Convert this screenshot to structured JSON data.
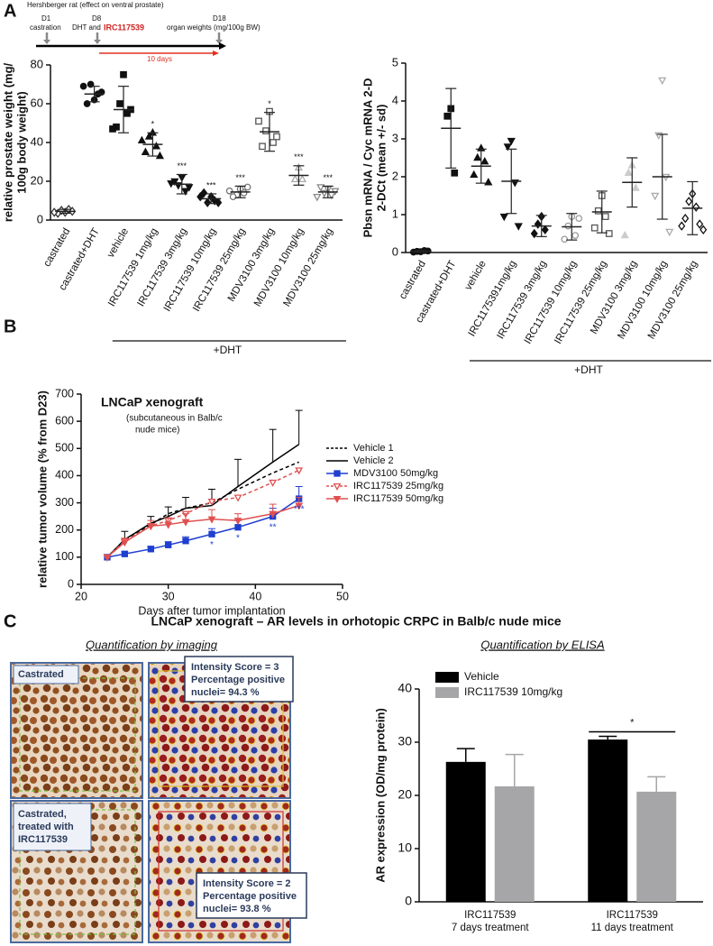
{
  "panels": {
    "a": "A",
    "b": "B",
    "c": "C"
  },
  "timeline": {
    "title": "Hershberger rat (effect on ventral prostate)",
    "d1": "D1",
    "d1_label": "castration",
    "d8": "D8",
    "d8_label": "DHT and",
    "d8_drug": "IRC117539",
    "d18": "D18",
    "d18_label": "organ weights (mg/100g BW)",
    "duration": "10 days"
  },
  "panel_c_title": "LNCaP xenograft – AR levels in orhotopic CRPC in Balb/c nude mice",
  "imaging": {
    "title": "Quantification by imaging",
    "samples": [
      {
        "label": [
          "Castrated"
        ],
        "score": "Intensity Score = 3",
        "positive": [
          "Percentage positive",
          "nuclei= 94.3 %"
        ]
      },
      {
        "label": [
          "Castrated,",
          "treated with",
          "IRC117539"
        ],
        "score": "Intensity Score = 2",
        "positive": [
          "Percentage positive",
          "nuclei= 93.8 %"
        ]
      }
    ]
  },
  "chart_data": [
    {
      "type": "strip",
      "ylabel": [
        "relative prostate weight (mg/",
        "100g body weight)"
      ],
      "categories": [
        "castrated",
        "castrated+DHT",
        "vehicle",
        "IRC117539 1mg/kg",
        "IRC117539 3mg/kg",
        "IRC117539 10mg/kg",
        "IRC117539 25mg/kg",
        "MDV3100 3mg/kg",
        "MDV3100 10mg/kg",
        "MDV3100 25mg/kg"
      ],
      "means": [
        4.5,
        65,
        57,
        39,
        18.5,
        11,
        14.5,
        45.5,
        23,
        14.5
      ],
      "sd": [
        1,
        4,
        12,
        6,
        5,
        2.5,
        3,
        10,
        5,
        3
      ],
      "points": [
        [
          4,
          5,
          5.5,
          3.5,
          4.5,
          4
        ],
        [
          62,
          70,
          65,
          60,
          66,
          69
        ],
        [
          75,
          60,
          55,
          48,
          57,
          47
        ],
        [
          45,
          43,
          38,
          35,
          33,
          41
        ],
        [
          22,
          18,
          15,
          20,
          17,
          19
        ],
        [
          12,
          9,
          10,
          14,
          9,
          12
        ],
        [
          16,
          13,
          14,
          12,
          17,
          15
        ],
        [
          56,
          46,
          40,
          38,
          43,
          51
        ],
        [
          27,
          21,
          21
        ],
        [
          16,
          14,
          13,
          17,
          15,
          12
        ]
      ],
      "markers": [
        "diamond",
        "circle",
        "square",
        "triangle",
        "triangle-down",
        "diamond",
        "circle",
        "square",
        "triangle",
        "triangle-down"
      ],
      "open": [
        true,
        false,
        false,
        false,
        false,
        false,
        true,
        true,
        true,
        true
      ],
      "colors": [
        "#333333",
        "#111111",
        "#111111",
        "#111111",
        "#111111",
        "#111111",
        "#777777",
        "#555555",
        "#aaaaaa",
        "#888888"
      ],
      "annotations": [
        null,
        null,
        null,
        "*",
        "***",
        "***",
        "***",
        "*",
        "***",
        "***"
      ],
      "group_label": "+DHT",
      "ylim": [
        0,
        80
      ],
      "yticks": [
        0,
        20,
        40,
        60,
        80
      ]
    },
    {
      "type": "strip",
      "ylabel": [
        "Pbsn mRNA / Cyc mRNA 2-D",
        "2-DCt (mean +/- sd)"
      ],
      "categories": [
        "castrated",
        "castrated+DHT",
        "vehicle",
        "IRC1175391mg/kg",
        "IRC117539 3mg/kg",
        "IRC117539 10mg/kg",
        "IRC117539 25mg/kg",
        "MDV3100 3mg/kg",
        "MDV3100 10mg/kg",
        "MDV3100 25mg/kg"
      ],
      "means": [
        0.03,
        3.28,
        2.28,
        1.88,
        0.7,
        0.68,
        1.07,
        1.85,
        2.0,
        1.17
      ],
      "sd": [
        0.02,
        1.05,
        0.45,
        0.85,
        0.28,
        0.35,
        0.55,
        0.65,
        1.12,
        0.7
      ],
      "points": [
        [
          0.02,
          0.03,
          0.05,
          0.01,
          0.04
        ],
        [
          3.8,
          3.6,
          2.1
        ],
        [
          2.75,
          2.5,
          2.4,
          2.05,
          1.85
        ],
        [
          2.95,
          2.8,
          1.85,
          0.95,
          0.7
        ],
        [
          0.95,
          0.75,
          0.6,
          0.5
        ],
        [
          0.95,
          0.7,
          0.45,
          0.35,
          0.9
        ],
        [
          1.5,
          1.1,
          0.95,
          0.65,
          0.5
        ],
        [
          2.3,
          2.1,
          1.7,
          0.45
        ],
        [
          4.55,
          3.1,
          2.0,
          1.5,
          0.55
        ],
        [
          1.55,
          1.35,
          1.2,
          0.9,
          0.75,
          0.7,
          0.6
        ]
      ],
      "markers": [
        "circle",
        "square",
        "triangle",
        "triangle-down",
        "diamond",
        "circle",
        "square",
        "triangle",
        "triangle-down",
        "diamond"
      ],
      "open": [
        false,
        false,
        false,
        false,
        false,
        true,
        true,
        false,
        true,
        true
      ],
      "colors": [
        "#111111",
        "#111111",
        "#111111",
        "#111111",
        "#111111",
        "#999999",
        "#555555",
        "#cccccc",
        "#aaaaaa",
        "#111111"
      ],
      "group_label": "+DHT",
      "ylim": [
        0,
        5
      ],
      "yticks": [
        0,
        1,
        2,
        3,
        4,
        5
      ]
    },
    {
      "type": "line",
      "title": "LNCaP xenograft",
      "subtitle": [
        "(subcutaneous in Balb/c",
        "nude mice)"
      ],
      "xlabel": "Days after tumor implantation",
      "ylabel": "relative tumor volume (% from D23)",
      "x": [
        23,
        25,
        28,
        30,
        32,
        35,
        38,
        42,
        45
      ],
      "series": [
        {
          "name": "Vehicle 1",
          "color": "#000000",
          "dash": true,
          "marker": null,
          "open": false,
          "values": [
            100,
            160,
            220,
            260,
            280,
            300,
            350,
            410,
            450
          ]
        },
        {
          "name": "Vehicle 2",
          "color": "#000000",
          "dash": false,
          "marker": null,
          "open": false,
          "values": [
            100,
            165,
            225,
            250,
            280,
            290,
            360,
            450,
            515
          ],
          "errors": [
            0,
            30,
            25,
            35,
            40,
            60,
            100,
            120,
            125
          ]
        },
        {
          "name": "MDV3100 50mg/kg",
          "color": "#1f3fd0",
          "dash": false,
          "marker": "square",
          "open": false,
          "values": [
            100,
            112,
            130,
            145,
            160,
            185,
            210,
            250,
            315
          ],
          "errors": [
            0,
            8,
            10,
            12,
            15,
            20,
            25,
            30,
            45
          ]
        },
        {
          "name": "IRC117539 25mg/kg",
          "color": "#e05050",
          "dash": true,
          "marker": "triangle-down",
          "open": true,
          "values": [
            100,
            160,
            215,
            235,
            260,
            305,
            320,
            375,
            420
          ]
        },
        {
          "name": "IRC117539 50mg/kg",
          "color": "#e05050",
          "dash": false,
          "marker": "triangle-down",
          "open": false,
          "values": [
            100,
            155,
            215,
            220,
            230,
            240,
            235,
            260,
            290
          ],
          "errors": [
            0,
            15,
            20,
            25,
            30,
            35,
            25,
            35,
            30
          ]
        }
      ],
      "significance": [
        null,
        null,
        null,
        null,
        null,
        "*",
        "*",
        "**",
        "***"
      ],
      "xlim": [
        20,
        50
      ],
      "xticks": [
        20,
        30,
        40,
        50
      ],
      "ylim": [
        0,
        700
      ],
      "yticks": [
        0,
        100,
        200,
        300,
        400,
        500,
        600,
        700
      ]
    },
    {
      "type": "bar",
      "title": "Quantification by ELISA",
      "ylabel": "AR expression (OD/mg protein)",
      "categories": [
        "IRC117539 7 days treatment",
        "IRC117539 11 days treatment"
      ],
      "series": [
        {
          "name": "Vehicle",
          "color": "#000000",
          "values": [
            26.3,
            30.5
          ],
          "errors": [
            2.5,
            0.6
          ]
        },
        {
          "name": "IRC117539 10mg/kg",
          "color": "#a6a6a8",
          "values": [
            21.7,
            20.7
          ],
          "errors": [
            6,
            2.8
          ]
        }
      ],
      "annotations": [
        null,
        "*"
      ],
      "ylim": [
        0,
        40
      ],
      "yticks": [
        0,
        10,
        20,
        30,
        40
      ]
    }
  ]
}
